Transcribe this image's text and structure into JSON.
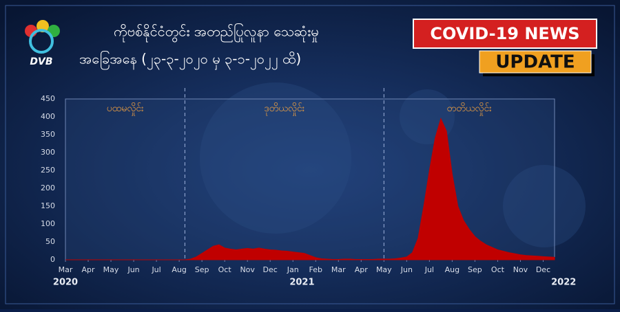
{
  "header": {
    "logo": "DVB",
    "badge_top": "COVID-19 NEWS",
    "badge_bottom": "UPDATE"
  },
  "chart_data": {
    "type": "area",
    "title": "ကိုဗစ်နိုင်ငံတွင်း အတည်ပြုလူနာ သေဆုံးမှု",
    "subtitle": "အခြေအနေ (၂၃-၃-၂၀၂၀ မှ ၃-၁-၂၀၂၂ ထိ)",
    "color": "#c00000",
    "grid": false,
    "x": [
      0,
      0.25,
      0.5,
      0.75,
      1,
      1.25,
      1.5,
      1.75,
      2,
      2.25,
      2.5,
      2.75,
      3,
      3.25,
      3.5,
      3.75,
      4,
      4.25,
      4.5,
      4.75,
      5,
      5.25,
      5.5,
      5.75,
      6,
      6.25,
      6.5,
      6.75,
      7,
      7.25,
      7.5,
      7.75,
      8,
      8.25,
      8.5,
      8.75,
      9,
      9.25,
      9.5,
      9.75,
      10,
      10.25,
      10.5,
      10.75,
      11,
      11.25,
      11.5,
      11.75,
      12,
      12.25,
      12.5,
      12.75,
      13,
      13.25,
      13.5,
      13.75,
      14,
      14.25,
      14.5,
      14.75,
      15,
      15.25,
      15.5,
      15.75,
      16,
      16.25,
      16.5,
      16.75,
      17,
      17.25,
      17.5,
      17.75,
      18,
      18.25,
      18.5,
      18.75,
      19,
      19.25,
      19.5,
      19.75,
      20,
      20.25,
      20.5,
      20.75,
      21,
      21.25,
      21.5
    ],
    "values": [
      0,
      0,
      0,
      0,
      0,
      0,
      0,
      0,
      0,
      0,
      0,
      0,
      0,
      0,
      0,
      0,
      0,
      0,
      0,
      0,
      0,
      0,
      2,
      8,
      18,
      28,
      38,
      42,
      33,
      30,
      28,
      30,
      32,
      30,
      33,
      30,
      28,
      27,
      25,
      24,
      22,
      20,
      18,
      12,
      6,
      3,
      2,
      1,
      1,
      2,
      2,
      1,
      1,
      1,
      1,
      2,
      2,
      2,
      3,
      5,
      8,
      20,
      60,
      150,
      250,
      340,
      395,
      360,
      240,
      150,
      110,
      85,
      65,
      52,
      42,
      35,
      28,
      24,
      20,
      17,
      14,
      12,
      11,
      10,
      9,
      8,
      7
    ],
    "xlim": [
      0,
      21.5
    ],
    "xticks": [
      {
        "value": 0,
        "label": "Mar"
      },
      {
        "value": 1,
        "label": "Apr"
      },
      {
        "value": 2,
        "label": "May"
      },
      {
        "value": 3,
        "label": "Jun"
      },
      {
        "value": 4,
        "label": "Jul"
      },
      {
        "value": 5,
        "label": "Aug"
      },
      {
        "value": 6,
        "label": "Sep"
      },
      {
        "value": 7,
        "label": "Oct"
      },
      {
        "value": 8,
        "label": "Nov"
      },
      {
        "value": 9,
        "label": "Dec"
      },
      {
        "value": 10,
        "label": "Jan"
      },
      {
        "value": 11,
        "label": "Feb"
      },
      {
        "value": 12,
        "label": "Mar"
      },
      {
        "value": 13,
        "label": "Apr"
      },
      {
        "value": 14,
        "label": "May"
      },
      {
        "value": 15,
        "label": "Jun"
      },
      {
        "value": 16,
        "label": "Jul"
      },
      {
        "value": 17,
        "label": "Aug"
      },
      {
        "value": 18,
        "label": "Sep"
      },
      {
        "value": 19,
        "label": "Oct"
      },
      {
        "value": 20,
        "label": "Nov"
      },
      {
        "value": 21,
        "label": "Dec"
      }
    ],
    "year_ticks": [
      {
        "value": 0,
        "label": "2020"
      },
      {
        "value": 10.4,
        "label": "2021"
      },
      {
        "value": 21.9,
        "label": "2022"
      }
    ],
    "ylim": [
      0,
      450
    ],
    "yticks": [
      0,
      50,
      100,
      150,
      200,
      250,
      300,
      350,
      400,
      450
    ],
    "wave_dividers": [
      5.25,
      14
    ],
    "wave_labels": [
      "ပထမလှိုင်း",
      "ဒုတိယလှိုင်း",
      "တတိယလှိုင်း"
    ]
  }
}
